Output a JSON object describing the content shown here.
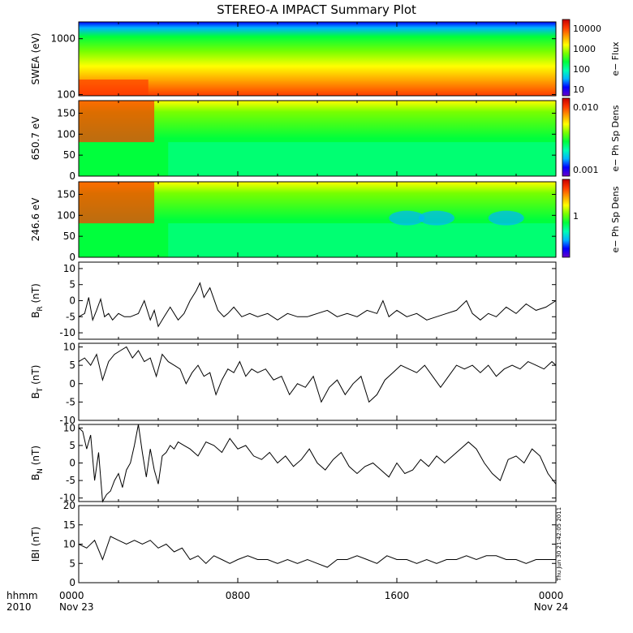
{
  "title": "STEREO-A IMPACT Summary Plot",
  "x_axis": {
    "row1_label": "hhmm",
    "row2_label": "2010",
    "ticks": [
      {
        "time": "0000",
        "date": "Nov 23",
        "hour": 0
      },
      {
        "time": "0800",
        "date": "",
        "hour": 8
      },
      {
        "time": "1600",
        "date": "",
        "hour": 16
      },
      {
        "time": "0000",
        "date": "Nov 24",
        "hour": 24
      }
    ]
  },
  "timestamp": "Thu Jun 30 21:42:05 2011",
  "colors": {
    "colormap": [
      "#6a00c8",
      "#0000ff",
      "#00b4ff",
      "#00ffb4",
      "#00ff3c",
      "#78ff00",
      "#ffff00",
      "#ffa000",
      "#ff3c00",
      "#c80000"
    ],
    "line": "#000000"
  },
  "chart_data": [
    {
      "type": "heatmap",
      "ylabel": "SWEA (eV)",
      "yscale": "log",
      "yticks": [
        "1000",
        "100"
      ],
      "ytick_values": [
        1000,
        100
      ],
      "ylim": [
        95,
        2000
      ],
      "colorbar": {
        "label": "e− Flux",
        "scale": "log",
        "ticks": [
          "10000",
          "1000",
          "100",
          "10"
        ]
      },
      "description_points": [
        {
          "hour": 0,
          "energy_band": "low",
          "level": "high flux"
        },
        {
          "hour": 3.5,
          "energy_band": "low",
          "level": "flux drops"
        }
      ]
    },
    {
      "type": "heatmap",
      "ylabel": "650.7 eV",
      "yticks": [
        "150",
        "100",
        "50",
        "0"
      ],
      "ytick_values": [
        150,
        100,
        50,
        0
      ],
      "ylim": [
        0,
        180
      ],
      "colorbar": {
        "label": "e− Ph Sp Dens",
        "scale": "log",
        "ticks": [
          "0.010",
          "0.001"
        ]
      }
    },
    {
      "type": "heatmap",
      "ylabel": "246.6 eV",
      "yticks": [
        "150",
        "100",
        "50",
        "0"
      ],
      "ytick_values": [
        150,
        100,
        50,
        0
      ],
      "ylim": [
        0,
        180
      ],
      "colorbar": {
        "label": "e− Ph Sp Dens",
        "scale": "log",
        "ticks": [
          "1"
        ]
      }
    },
    {
      "type": "line",
      "ylabel": "B_R (nT)",
      "ylabel_main": "B",
      "ylabel_sub": "R",
      "ylabel_unit": " (nT)",
      "ylim": [
        -12,
        12
      ],
      "yticks": [
        "10",
        "5",
        "0",
        "-5",
        "-10"
      ],
      "ytick_values": [
        10,
        5,
        0,
        -5,
        -10
      ],
      "x": [
        0,
        0.3,
        0.5,
        0.7,
        0.9,
        1.1,
        1.3,
        1.5,
        1.7,
        2,
        2.3,
        2.6,
        3,
        3.3,
        3.6,
        3.8,
        4,
        4.3,
        4.6,
        5,
        5.3,
        5.6,
        5.9,
        6.1,
        6.3,
        6.6,
        7,
        7.3,
        7.5,
        7.8,
        8.2,
        8.6,
        9,
        9.5,
        10,
        10.5,
        11,
        11.5,
        12,
        12.5,
        13,
        13.5,
        14,
        14.5,
        15,
        15.3,
        15.6,
        16,
        16.5,
        17,
        17.5,
        18,
        18.5,
        19,
        19.5,
        19.8,
        20.2,
        20.6,
        21,
        21.5,
        22,
        22.5,
        23,
        23.5,
        24
      ],
      "y": [
        -5,
        -4,
        1,
        -6,
        -3,
        0.5,
        -5,
        -4,
        -6,
        -4,
        -5,
        -5,
        -4,
        0,
        -6,
        -3,
        -8,
        -5,
        -2,
        -6,
        -4,
        0,
        3,
        5.5,
        1,
        4,
        -3,
        -5,
        -4,
        -2,
        -5,
        -4,
        -5,
        -4,
        -6,
        -4,
        -5,
        -5,
        -4,
        -3,
        -5,
        -4,
        -5,
        -3,
        -4,
        0,
        -5,
        -3,
        -5,
        -4,
        -6,
        -5,
        -4,
        -3,
        0,
        -4,
        -6,
        -4,
        -5,
        -2,
        -4,
        -1,
        -3,
        -2,
        0
      ]
    },
    {
      "type": "line",
      "ylabel": "B_T (nT)",
      "ylabel_main": "B",
      "ylabel_sub": "T",
      "ylabel_unit": " (nT)",
      "ylim": [
        -10,
        11
      ],
      "yticks": [
        "10",
        "5",
        "0",
        "-5",
        "-10"
      ],
      "ytick_values": [
        10,
        5,
        0,
        -5,
        -10
      ],
      "x": [
        0,
        0.3,
        0.6,
        0.9,
        1.2,
        1.5,
        1.8,
        2.1,
        2.4,
        2.7,
        3,
        3.3,
        3.6,
        3.9,
        4.2,
        4.5,
        4.8,
        5.1,
        5.4,
        5.7,
        6,
        6.3,
        6.6,
        6.9,
        7.2,
        7.5,
        7.8,
        8.1,
        8.4,
        8.7,
        9,
        9.4,
        9.8,
        10.2,
        10.6,
        11,
        11.4,
        11.8,
        12.2,
        12.6,
        13,
        13.4,
        13.8,
        14.2,
        14.6,
        15,
        15.4,
        15.8,
        16.2,
        16.6,
        17,
        17.4,
        17.8,
        18.2,
        18.6,
        19,
        19.4,
        19.8,
        20.2,
        20.6,
        21,
        21.4,
        21.8,
        22.2,
        22.6,
        23,
        23.4,
        23.8,
        24
      ],
      "y": [
        6,
        7,
        5,
        8,
        1,
        6,
        8,
        9,
        10,
        7,
        9,
        6,
        7,
        2,
        8,
        6,
        5,
        4,
        0,
        3,
        5,
        2,
        3,
        -3,
        1,
        4,
        3,
        6,
        2,
        4,
        3,
        4,
        1,
        2,
        -3,
        0,
        -1,
        2,
        -5,
        -1,
        1,
        -3,
        0,
        2,
        -5,
        -3,
        1,
        3,
        5,
        4,
        3,
        5,
        2,
        -1,
        2,
        5,
        4,
        5,
        3,
        5,
        2,
        4,
        5,
        4,
        6,
        5,
        4,
        6,
        5
      ]
    },
    {
      "type": "line",
      "ylabel": "B_N (nT)",
      "ylabel_main": "B",
      "ylabel_sub": "N",
      "ylabel_unit": " (nT)",
      "ylim": [
        -11,
        11
      ],
      "yticks": [
        "10",
        "5",
        "0",
        "-5",
        "-10"
      ],
      "ytick_values": [
        10,
        5,
        0,
        -5,
        -10
      ],
      "x": [
        0,
        0.2,
        0.4,
        0.6,
        0.8,
        1,
        1.2,
        1.4,
        1.6,
        1.8,
        2,
        2.2,
        2.4,
        2.6,
        2.8,
        3,
        3.2,
        3.4,
        3.6,
        3.8,
        4,
        4.2,
        4.4,
        4.6,
        4.8,
        5,
        5.3,
        5.6,
        6,
        6.4,
        6.8,
        7.2,
        7.6,
        8,
        8.4,
        8.8,
        9.2,
        9.6,
        10,
        10.4,
        10.8,
        11.2,
        11.6,
        12,
        12.4,
        12.8,
        13.2,
        13.6,
        14,
        14.4,
        14.8,
        15.2,
        15.6,
        16,
        16.4,
        16.8,
        17.2,
        17.6,
        18,
        18.4,
        18.8,
        19.2,
        19.6,
        20,
        20.4,
        20.8,
        21.2,
        21.6,
        22,
        22.4,
        22.8,
        23.2,
        23.6,
        24
      ],
      "y": [
        10,
        9,
        4,
        8,
        -5,
        3,
        -11,
        -9,
        -8,
        -5,
        -3,
        -7,
        -2,
        0,
        5,
        11,
        3,
        -4,
        4,
        -2,
        -6,
        2,
        3,
        5,
        4,
        6,
        5,
        4,
        2,
        6,
        5,
        3,
        7,
        4,
        5,
        2,
        1,
        3,
        0,
        2,
        -1,
        1,
        4,
        0,
        -2,
        1,
        3,
        -1,
        -3,
        -1,
        0,
        -2,
        -4,
        0,
        -3,
        -2,
        1,
        -1,
        2,
        0,
        2,
        4,
        6,
        4,
        0,
        -3,
        -5,
        1,
        2,
        0,
        4,
        2,
        -3,
        -6
      ]
    },
    {
      "type": "line",
      "ylabel": "|B| (nT)",
      "ylabel_main": "IBI",
      "ylabel_sub": "",
      "ylabel_unit": " (nT)",
      "ylim": [
        0,
        20
      ],
      "yticks": [
        "20",
        "15",
        "10",
        "5",
        "0"
      ],
      "ytick_values": [
        20,
        15,
        10,
        5,
        0
      ],
      "x": [
        0,
        0.4,
        0.8,
        1.2,
        1.6,
        2,
        2.4,
        2.8,
        3.2,
        3.6,
        4,
        4.4,
        4.8,
        5.2,
        5.6,
        6,
        6.4,
        6.8,
        7.2,
        7.6,
        8,
        8.5,
        9,
        9.5,
        10,
        10.5,
        11,
        11.5,
        12,
        12.5,
        13,
        13.5,
        14,
        14.5,
        15,
        15.5,
        16,
        16.5,
        17,
        17.5,
        18,
        18.5,
        19,
        19.5,
        20,
        20.5,
        21,
        21.5,
        22,
        22.5,
        23,
        23.5,
        24
      ],
      "y": [
        10,
        9,
        11,
        6,
        12,
        11,
        10,
        11,
        10,
        11,
        9,
        10,
        8,
        9,
        6,
        7,
        5,
        7,
        6,
        5,
        6,
        7,
        6,
        6,
        5,
        6,
        5,
        6,
        5,
        4,
        6,
        6,
        7,
        6,
        5,
        7,
        6,
        6,
        5,
        6,
        5,
        6,
        6,
        7,
        6,
        7,
        7,
        6,
        6,
        5,
        6,
        6,
        6
      ]
    }
  ]
}
